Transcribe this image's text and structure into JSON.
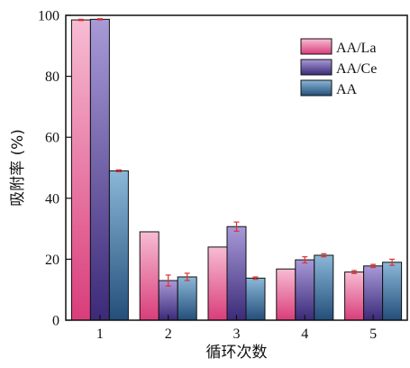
{
  "chart_data": {
    "type": "bar",
    "title": "",
    "xlabel": "循环次数",
    "ylabel": "吸附率 (%)",
    "ylim": [
      0,
      100
    ],
    "yticks": [
      0,
      20,
      40,
      60,
      80,
      100
    ],
    "categories": [
      "1",
      "2",
      "3",
      "4",
      "5"
    ],
    "legend_position": "top-right",
    "grid": false,
    "series": [
      {
        "name": "AA/La",
        "values": [
          98.5,
          29.0,
          24.0,
          16.8,
          15.8
        ],
        "errors": [
          0.2,
          0.0,
          0.0,
          0.0,
          0.5
        ],
        "color_top": "#f7bcd3",
        "color_bottom": "#d93d7a"
      },
      {
        "name": "AA/Ce",
        "values": [
          98.7,
          13.0,
          30.7,
          19.8,
          17.8
        ],
        "errors": [
          0.2,
          1.8,
          1.5,
          1.0,
          0.5
        ],
        "color_top": "#a89ad8",
        "color_bottom": "#3b2a78"
      },
      {
        "name": "AA",
        "values": [
          49.0,
          14.2,
          13.8,
          21.3,
          19.0
        ],
        "errors": [
          0.3,
          1.2,
          0.4,
          0.5,
          1.0
        ],
        "color_top": "#8bb7d8",
        "color_bottom": "#234e7a"
      }
    ],
    "error_bar_color": "#e0302f"
  }
}
